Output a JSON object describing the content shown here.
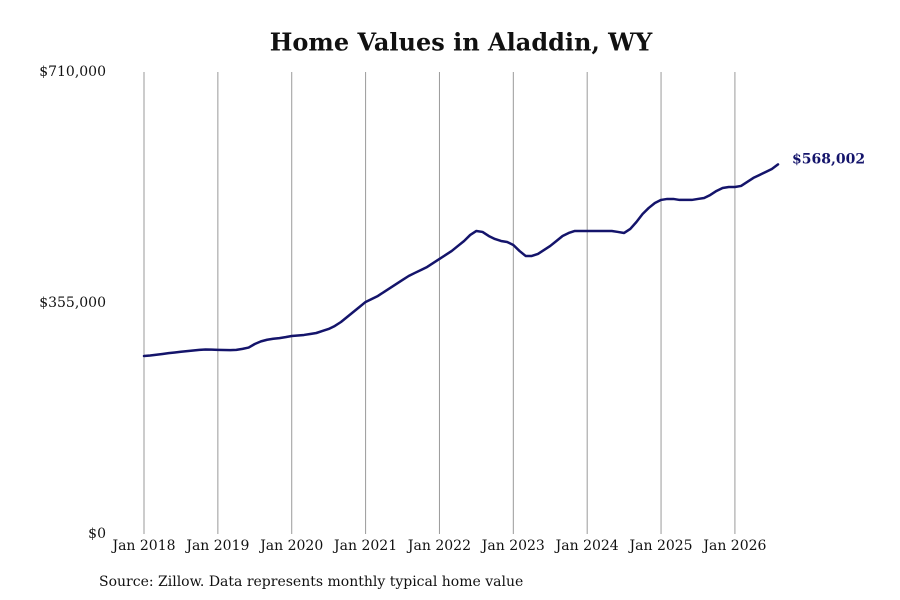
{
  "chart_data": {
    "type": "line",
    "title": "Home Values in Aladdin, WY",
    "caption": "Source: Zillow. Data represents monthly typical home value",
    "color": "#14146b",
    "grid": "x",
    "ylim": [
      0,
      710000
    ],
    "yticks": [
      {
        "value": 0,
        "label": "$0"
      },
      {
        "value": 355000,
        "label": "$355,000"
      },
      {
        "value": 710000,
        "label": "$710,000"
      }
    ],
    "xlim": [
      "2018-01",
      "2026-08"
    ],
    "xticks": [
      {
        "value": "2018-01",
        "label": "Jan 2018"
      },
      {
        "value": "2019-01",
        "label": "Jan 2019"
      },
      {
        "value": "2020-01",
        "label": "Jan 2020"
      },
      {
        "value": "2021-01",
        "label": "Jan 2021"
      },
      {
        "value": "2022-01",
        "label": "Jan 2022"
      },
      {
        "value": "2023-01",
        "label": "Jan 2023"
      },
      {
        "value": "2024-01",
        "label": "Jan 2024"
      },
      {
        "value": "2025-01",
        "label": "Jan 2025"
      },
      {
        "value": "2026-01",
        "label": "Jan 2026"
      }
    ],
    "x": [
      "2018-01",
      "2018-02",
      "2018-03",
      "2018-04",
      "2018-05",
      "2018-06",
      "2018-07",
      "2018-08",
      "2018-09",
      "2018-10",
      "2018-11",
      "2018-12",
      "2019-01",
      "2019-02",
      "2019-03",
      "2019-04",
      "2019-05",
      "2019-06",
      "2019-07",
      "2019-08",
      "2019-09",
      "2019-10",
      "2019-11",
      "2019-12",
      "2020-01",
      "2020-02",
      "2020-03",
      "2020-04",
      "2020-05",
      "2020-06",
      "2020-07",
      "2020-08",
      "2020-09",
      "2020-10",
      "2020-11",
      "2020-12",
      "2021-01",
      "2021-02",
      "2021-03",
      "2021-04",
      "2021-05",
      "2021-06",
      "2021-07",
      "2021-08",
      "2021-09",
      "2021-10",
      "2021-11",
      "2021-12",
      "2022-01",
      "2022-02",
      "2022-03",
      "2022-04",
      "2022-05",
      "2022-06",
      "2022-07",
      "2022-08",
      "2022-09",
      "2022-10",
      "2022-11",
      "2022-12",
      "2023-01",
      "2023-02",
      "2023-03",
      "2023-04",
      "2023-05",
      "2023-06",
      "2023-07",
      "2023-08",
      "2023-09",
      "2023-10",
      "2023-11",
      "2023-12",
      "2024-01",
      "2024-02",
      "2024-03",
      "2024-04",
      "2024-05",
      "2024-06",
      "2024-07",
      "2024-08",
      "2024-09",
      "2024-10",
      "2024-11",
      "2024-12",
      "2025-01",
      "2025-02",
      "2025-03",
      "2025-04",
      "2025-05",
      "2025-06",
      "2025-07",
      "2025-08",
      "2025-09",
      "2025-10",
      "2025-11",
      "2025-12",
      "2026-01",
      "2026-02",
      "2026-03",
      "2026-04",
      "2026-05",
      "2026-06",
      "2026-07",
      "2026-08"
    ],
    "values": [
      273600,
      274400,
      275500,
      276700,
      278000,
      279000,
      280000,
      281000,
      282000,
      283000,
      283500,
      283300,
      283000,
      282700,
      282500,
      283000,
      284500,
      286500,
      292000,
      296000,
      298500,
      300000,
      301000,
      302500,
      304300,
      305100,
      305900,
      307400,
      308900,
      312000,
      315100,
      319700,
      325800,
      333500,
      341200,
      348900,
      356600,
      361200,
      365800,
      372000,
      378100,
      384300,
      390400,
      396500,
      401200,
      405800,
      410400,
      416500,
      422700,
      428800,
      435000,
      442700,
      450300,
      459600,
      465700,
      464200,
      458000,
      453400,
      450300,
      448800,
      444200,
      435000,
      427300,
      427300,
      430400,
      436500,
      442700,
      450300,
      458000,
      462600,
      465700,
      465700,
      465700,
      465700,
      465700,
      465700,
      465700,
      464200,
      462600,
      468800,
      479500,
      491800,
      501100,
      508700,
      513400,
      514900,
      514900,
      513400,
      513400,
      513400,
      514900,
      516400,
      521000,
      527200,
      531800,
      533300,
      533300,
      534900,
      541000,
      547200,
      551800,
      556400,
      561000,
      568002
    ],
    "value_labels": [
      null,
      null,
      null,
      null,
      null,
      null,
      null,
      null,
      null,
      null,
      null,
      null,
      null,
      null,
      null,
      null,
      null,
      null,
      null,
      null,
      null,
      null,
      null,
      null,
      null,
      null,
      null,
      null,
      null,
      null,
      null,
      null,
      null,
      null,
      null,
      null,
      null,
      null,
      null,
      null,
      null,
      null,
      null,
      null,
      null,
      null,
      null,
      null,
      null,
      null,
      null,
      null,
      null,
      null,
      null,
      null,
      null,
      null,
      null,
      null,
      null,
      null,
      null,
      null,
      null,
      null,
      null,
      null,
      null,
      null,
      null,
      null,
      null,
      null,
      null,
      null,
      null,
      null,
      null,
      null,
      null,
      null,
      null,
      null,
      null,
      null,
      null,
      null,
      null,
      null,
      null,
      null,
      null,
      null,
      null,
      null,
      null,
      null,
      null,
      null,
      null,
      null,
      null,
      "$568,002"
    ]
  }
}
